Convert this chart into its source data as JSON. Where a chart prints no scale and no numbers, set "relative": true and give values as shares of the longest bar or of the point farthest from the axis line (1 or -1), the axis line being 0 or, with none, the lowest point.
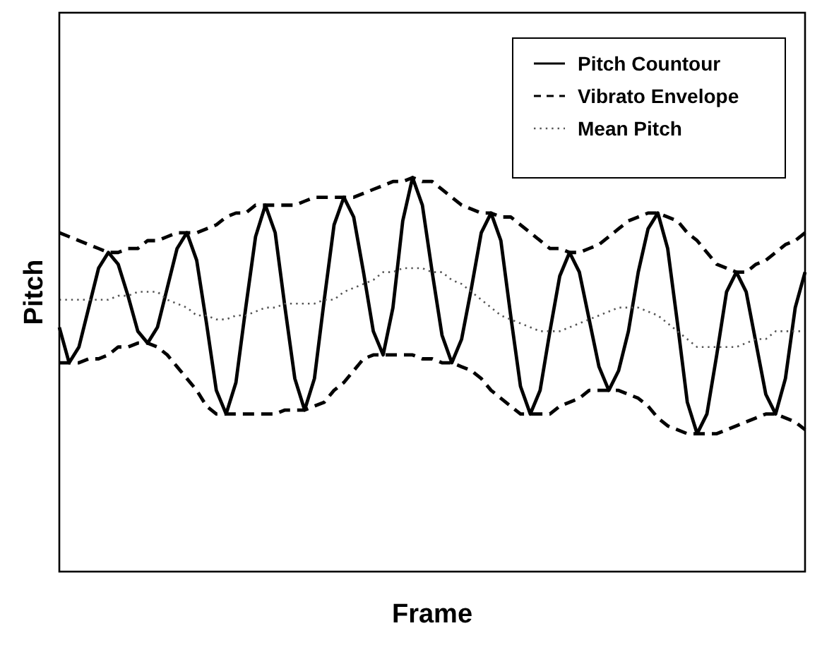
{
  "chart_data": {
    "type": "line",
    "xlabel": "Frame",
    "ylabel": "Pitch",
    "relative": true,
    "legend": "top right",
    "categories": [
      null,
      null,
      null,
      null,
      null,
      null,
      null,
      null,
      null,
      null,
      null,
      null,
      null,
      null,
      null,
      null,
      null,
      null,
      null,
      null,
      null,
      null,
      null,
      null,
      null,
      null,
      null,
      null,
      null,
      null,
      null,
      null,
      null,
      null,
      null,
      null,
      null,
      null,
      null,
      null,
      null,
      null,
      null,
      null,
      null,
      null,
      null,
      null,
      null,
      null,
      null,
      null,
      null,
      null,
      null,
      null,
      null,
      null,
      null,
      null,
      null,
      null,
      null,
      null,
      null,
      null,
      null,
      null,
      null,
      null,
      null,
      null,
      null,
      null,
      null,
      null,
      null
    ],
    "series": [
      {
        "name": "Pitch Countour",
        "color": "#000000",
        "line_style": "solid",
        "values": [
          0.62,
          0.53,
          0.57,
          0.67,
          0.77,
          0.81,
          0.78,
          0.7,
          0.61,
          0.58,
          0.62,
          0.72,
          0.82,
          0.86,
          0.79,
          0.63,
          0.46,
          0.4,
          0.48,
          0.67,
          0.85,
          0.93,
          0.86,
          0.67,
          0.49,
          0.41,
          0.49,
          0.69,
          0.88,
          0.95,
          0.9,
          0.76,
          0.61,
          0.55,
          0.67,
          0.89,
          1.0,
          0.93,
          0.76,
          0.6,
          0.53,
          0.59,
          0.72,
          0.86,
          0.91,
          0.84,
          0.65,
          0.47,
          0.4,
          0.46,
          0.61,
          0.75,
          0.81,
          0.76,
          0.64,
          0.52,
          0.46,
          0.51,
          0.61,
          0.76,
          0.87,
          0.91,
          0.82,
          0.63,
          0.43,
          0.35,
          0.4,
          0.55,
          0.71,
          0.76,
          0.71,
          0.58,
          0.45,
          0.4,
          0.49,
          0.67,
          0.76
        ]
      },
      {
        "name": "Vibrato Envelope",
        "color": "#000000",
        "line_style": "dashed",
        "values": [
          0.86,
          0.85,
          0.84,
          0.83,
          0.82,
          0.81,
          0.81,
          0.82,
          0.82,
          0.84,
          0.84,
          0.85,
          0.86,
          0.86,
          0.86,
          0.87,
          0.88,
          0.9,
          0.91,
          0.91,
          0.93,
          0.93,
          0.93,
          0.93,
          0.93,
          0.94,
          0.95,
          0.95,
          0.95,
          0.95,
          0.95,
          0.96,
          0.97,
          0.98,
          0.99,
          0.99,
          1.0,
          0.99,
          0.99,
          0.97,
          0.95,
          0.93,
          0.92,
          0.91,
          0.91,
          0.9,
          0.9,
          0.88,
          0.86,
          0.84,
          0.82,
          0.82,
          0.81,
          0.81,
          0.82,
          0.83,
          0.85,
          0.87,
          0.89,
          0.9,
          0.91,
          0.91,
          0.9,
          0.89,
          0.86,
          0.84,
          0.81,
          0.78,
          0.77,
          0.76,
          0.76,
          0.78,
          0.79,
          0.81,
          0.83,
          0.84,
          0.86
        ]
      },
      {
        "name": "Mean Pitch",
        "color": "#555555",
        "line_style": "dotted",
        "values": [
          0.69,
          0.69,
          0.69,
          0.69,
          0.69,
          0.69,
          0.7,
          0.7,
          0.71,
          0.71,
          0.71,
          0.69,
          0.68,
          0.67,
          0.65,
          0.65,
          0.64,
          0.64,
          0.65,
          0.65,
          0.66,
          0.67,
          0.67,
          0.68,
          0.68,
          0.68,
          0.68,
          0.69,
          0.69,
          0.71,
          0.72,
          0.73,
          0.74,
          0.76,
          0.76,
          0.77,
          0.77,
          0.77,
          0.76,
          0.76,
          0.74,
          0.73,
          0.71,
          0.69,
          0.67,
          0.65,
          0.64,
          0.63,
          0.62,
          0.61,
          0.61,
          0.61,
          0.62,
          0.63,
          0.64,
          0.65,
          0.66,
          0.67,
          0.67,
          0.67,
          0.66,
          0.65,
          0.63,
          0.61,
          0.59,
          0.57,
          0.57,
          0.57,
          0.57,
          0.57,
          0.58,
          0.59,
          0.59,
          0.61,
          0.61,
          0.61,
          0.61
        ]
      },
      {
        "color": "#000000",
        "line_style": "dashed",
        "values": [
          0.53,
          0.53,
          0.53,
          0.54,
          0.54,
          0.55,
          0.57,
          0.57,
          0.58,
          0.58,
          0.57,
          0.55,
          0.52,
          0.49,
          0.46,
          0.42,
          0.4,
          0.4,
          0.4,
          0.4,
          0.4,
          0.4,
          0.4,
          0.41,
          0.41,
          0.41,
          0.42,
          0.43,
          0.46,
          0.48,
          0.51,
          0.54,
          0.55,
          0.55,
          0.55,
          0.55,
          0.55,
          0.54,
          0.54,
          0.53,
          0.53,
          0.52,
          0.51,
          0.49,
          0.46,
          0.44,
          0.42,
          0.4,
          0.4,
          0.4,
          0.4,
          0.42,
          0.43,
          0.44,
          0.46,
          0.46,
          0.46,
          0.46,
          0.45,
          0.44,
          0.42,
          0.39,
          0.37,
          0.36,
          0.35,
          0.35,
          0.35,
          0.35,
          0.36,
          0.37,
          0.38,
          0.39,
          0.4,
          0.4,
          0.39,
          0.38,
          0.36
        ]
      }
    ]
  }
}
